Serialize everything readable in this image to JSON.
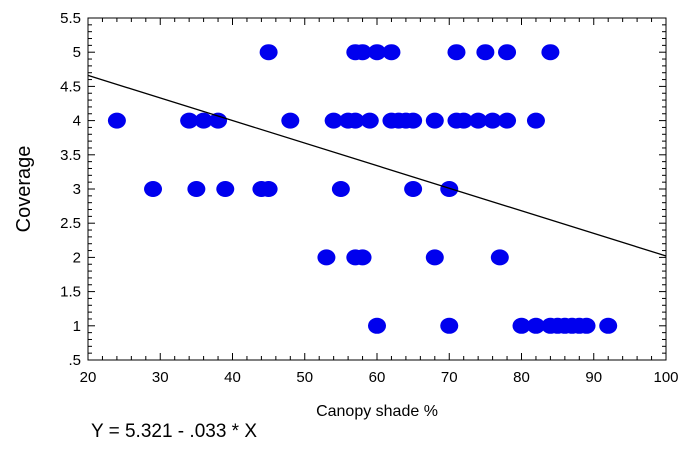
{
  "chart_data": {
    "type": "scatter",
    "xlabel": "Canopy shade %",
    "ylabel": "Coverage",
    "xlim": [
      20,
      100
    ],
    "ylim": [
      0.5,
      5.5
    ],
    "x_ticks": [
      20,
      30,
      40,
      50,
      60,
      70,
      80,
      90,
      100
    ],
    "x_tick_labels": [
      "20",
      "30",
      "40",
      "50",
      "60",
      "70",
      "80",
      "90",
      "100"
    ],
    "y_ticks": [
      0.5,
      1,
      1.5,
      2,
      2.5,
      3,
      3.5,
      4,
      4.5,
      5,
      5.5
    ],
    "y_tick_labels": [
      ".5",
      "1",
      "1.5",
      "2",
      "2.5",
      "3",
      "3.5",
      "4",
      "4.5",
      "5",
      "5.5"
    ],
    "point_color": "#0000ee",
    "line_color": "#000000",
    "grid": false,
    "points": [
      {
        "x": 45,
        "y": 5
      },
      {
        "x": 57,
        "y": 5
      },
      {
        "x": 58,
        "y": 5
      },
      {
        "x": 60,
        "y": 5
      },
      {
        "x": 62,
        "y": 5
      },
      {
        "x": 71,
        "y": 5
      },
      {
        "x": 75,
        "y": 5
      },
      {
        "x": 78,
        "y": 5
      },
      {
        "x": 84,
        "y": 5
      },
      {
        "x": 24,
        "y": 4
      },
      {
        "x": 34,
        "y": 4
      },
      {
        "x": 36,
        "y": 4
      },
      {
        "x": 38,
        "y": 4
      },
      {
        "x": 48,
        "y": 4
      },
      {
        "x": 54,
        "y": 4
      },
      {
        "x": 56,
        "y": 4
      },
      {
        "x": 57,
        "y": 4
      },
      {
        "x": 59,
        "y": 4
      },
      {
        "x": 62,
        "y": 4
      },
      {
        "x": 63,
        "y": 4
      },
      {
        "x": 64,
        "y": 4
      },
      {
        "x": 65,
        "y": 4
      },
      {
        "x": 68,
        "y": 4
      },
      {
        "x": 71,
        "y": 4
      },
      {
        "x": 72,
        "y": 4
      },
      {
        "x": 74,
        "y": 4
      },
      {
        "x": 76,
        "y": 4
      },
      {
        "x": 78,
        "y": 4
      },
      {
        "x": 82,
        "y": 4
      },
      {
        "x": 29,
        "y": 3
      },
      {
        "x": 35,
        "y": 3
      },
      {
        "x": 39,
        "y": 3
      },
      {
        "x": 44,
        "y": 3
      },
      {
        "x": 45,
        "y": 3
      },
      {
        "x": 55,
        "y": 3
      },
      {
        "x": 65,
        "y": 3
      },
      {
        "x": 70,
        "y": 3
      },
      {
        "x": 53,
        "y": 2
      },
      {
        "x": 57,
        "y": 2
      },
      {
        "x": 58,
        "y": 2
      },
      {
        "x": 68,
        "y": 2
      },
      {
        "x": 77,
        "y": 2
      },
      {
        "x": 60,
        "y": 1
      },
      {
        "x": 70,
        "y": 1
      },
      {
        "x": 80,
        "y": 1
      },
      {
        "x": 82,
        "y": 1
      },
      {
        "x": 84,
        "y": 1
      },
      {
        "x": 85,
        "y": 1
      },
      {
        "x": 86,
        "y": 1
      },
      {
        "x": 87,
        "y": 1
      },
      {
        "x": 88,
        "y": 1
      },
      {
        "x": 89,
        "y": 1
      },
      {
        "x": 92,
        "y": 1
      }
    ],
    "regression": {
      "intercept": 5.321,
      "slope": -0.033,
      "equation_label": "Y = 5.321 - .033 * X"
    }
  }
}
